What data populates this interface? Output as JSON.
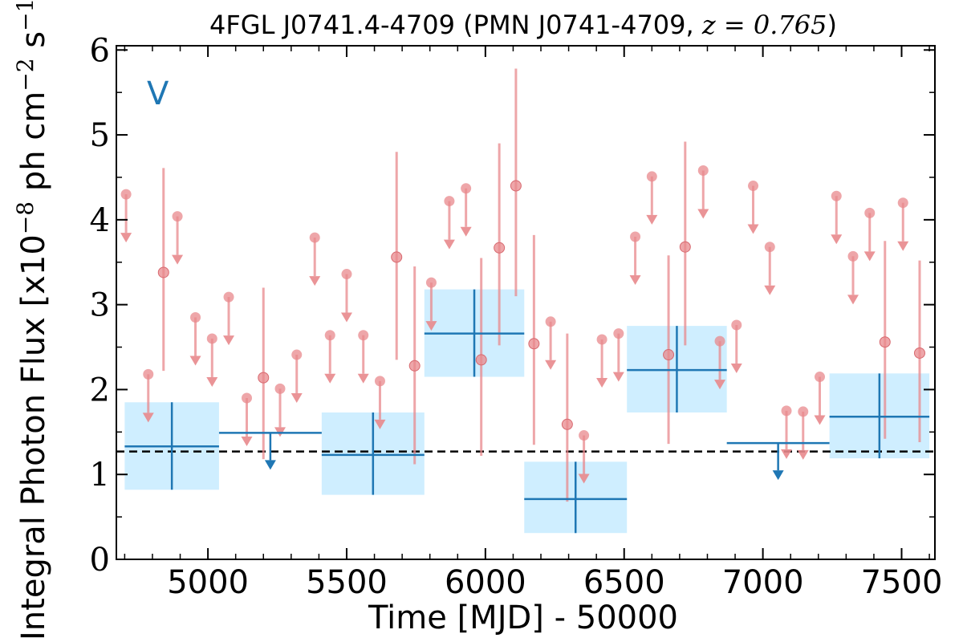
{
  "chart_data": {
    "type": "scatter",
    "title_prefix": "4FGL J0741.4-4709 (PMN J0741-4709, ",
    "title_math": "z = 0.765",
    "title_suffix": ")",
    "xlabel": "Time [MJD] - 50000",
    "ylabel_main": "Integral Photon Flux [x10",
    "ylabel_exp1": "−8",
    "ylabel_mid": " ph cm",
    "ylabel_exp2": "−2",
    "ylabel_s": " s",
    "ylabel_exp3": "−1",
    "ylabel_end": "]",
    "panel_label": "V",
    "xlim": [
      4670,
      7620
    ],
    "ylim": [
      0,
      6.05
    ],
    "xticks": [
      5000,
      5500,
      6000,
      6500,
      7000,
      7500
    ],
    "yticks": [
      0,
      1,
      2,
      3,
      4,
      5,
      6
    ],
    "mean_flux": 1.27,
    "colors": {
      "short": "#e8888c",
      "long": "#1f77b4",
      "box": "#cfeeff",
      "mean": "#000000"
    },
    "short_detections": [
      {
        "x": 4840,
        "y": 3.38,
        "lo": 2.22,
        "hi": 4.61
      },
      {
        "x": 5200,
        "y": 2.14,
        "lo": 1.18,
        "hi": 3.2
      },
      {
        "x": 5680,
        "y": 3.56,
        "lo": 2.35,
        "hi": 4.8
      },
      {
        "x": 5745,
        "y": 2.28,
        "lo": 1.12,
        "hi": 3.45
      },
      {
        "x": 5985,
        "y": 2.35,
        "lo": 1.22,
        "hi": 3.55
      },
      {
        "x": 6050,
        "y": 3.67,
        "lo": 2.52,
        "hi": 4.9
      },
      {
        "x": 6110,
        "y": 4.4,
        "lo": 3.1,
        "hi": 5.78
      },
      {
        "x": 6175,
        "y": 2.54,
        "lo": 1.35,
        "hi": 3.82
      },
      {
        "x": 6295,
        "y": 1.59,
        "lo": 0.68,
        "hi": 2.66
      },
      {
        "x": 6660,
        "y": 2.41,
        "lo": 1.36,
        "hi": 3.58
      },
      {
        "x": 6720,
        "y": 3.68,
        "lo": 2.52,
        "hi": 4.92
      },
      {
        "x": 7440,
        "y": 2.56,
        "lo": 1.42,
        "hi": 3.75
      },
      {
        "x": 7565,
        "y": 2.43,
        "lo": 1.38,
        "hi": 3.52
      }
    ],
    "short_upper_limits": [
      {
        "x": 4705,
        "y": 4.3
      },
      {
        "x": 4785,
        "y": 2.18
      },
      {
        "x": 4890,
        "y": 4.04
      },
      {
        "x": 4955,
        "y": 2.85
      },
      {
        "x": 5015,
        "y": 2.6
      },
      {
        "x": 5075,
        "y": 3.09
      },
      {
        "x": 5140,
        "y": 1.9
      },
      {
        "x": 5260,
        "y": 2.01
      },
      {
        "x": 5320,
        "y": 2.41
      },
      {
        "x": 5385,
        "y": 3.79
      },
      {
        "x": 5440,
        "y": 2.64
      },
      {
        "x": 5500,
        "y": 3.36
      },
      {
        "x": 5560,
        "y": 2.64
      },
      {
        "x": 5620,
        "y": 2.1
      },
      {
        "x": 5805,
        "y": 3.26
      },
      {
        "x": 5870,
        "y": 4.22
      },
      {
        "x": 5930,
        "y": 4.37
      },
      {
        "x": 6235,
        "y": 2.8
      },
      {
        "x": 6355,
        "y": 1.46
      },
      {
        "x": 6420,
        "y": 2.59
      },
      {
        "x": 6480,
        "y": 2.66
      },
      {
        "x": 6540,
        "y": 3.8
      },
      {
        "x": 6600,
        "y": 4.51
      },
      {
        "x": 6785,
        "y": 4.58
      },
      {
        "x": 6845,
        "y": 2.57
      },
      {
        "x": 6905,
        "y": 2.76
      },
      {
        "x": 6965,
        "y": 4.4
      },
      {
        "x": 7025,
        "y": 3.68
      },
      {
        "x": 7085,
        "y": 1.75
      },
      {
        "x": 7145,
        "y": 1.74
      },
      {
        "x": 7205,
        "y": 2.15
      },
      {
        "x": 7265,
        "y": 4.28
      },
      {
        "x": 7325,
        "y": 3.57
      },
      {
        "x": 7385,
        "y": 4.08
      },
      {
        "x": 7505,
        "y": 4.2
      }
    ],
    "long_detections": [
      {
        "x0": 4700,
        "x1": 5040,
        "y": 1.33,
        "lo": 0.82,
        "hi": 1.85
      },
      {
        "x0": 5410,
        "x1": 5780,
        "y": 1.23,
        "lo": 0.76,
        "hi": 1.73
      },
      {
        "x0": 5780,
        "x1": 6140,
        "y": 2.66,
        "lo": 2.15,
        "hi": 3.18
      },
      {
        "x0": 6140,
        "x1": 6510,
        "y": 0.71,
        "lo": 0.31,
        "hi": 1.15
      },
      {
        "x0": 6510,
        "x1": 6870,
        "y": 2.23,
        "lo": 1.73,
        "hi": 2.75
      },
      {
        "x0": 7240,
        "x1": 7600,
        "y": 1.68,
        "lo": 1.19,
        "hi": 2.19
      }
    ],
    "long_upper_limits": [
      {
        "x0": 5040,
        "x1": 5410,
        "y": 1.49
      },
      {
        "x0": 6870,
        "x1": 7240,
        "y": 1.37
      }
    ]
  }
}
